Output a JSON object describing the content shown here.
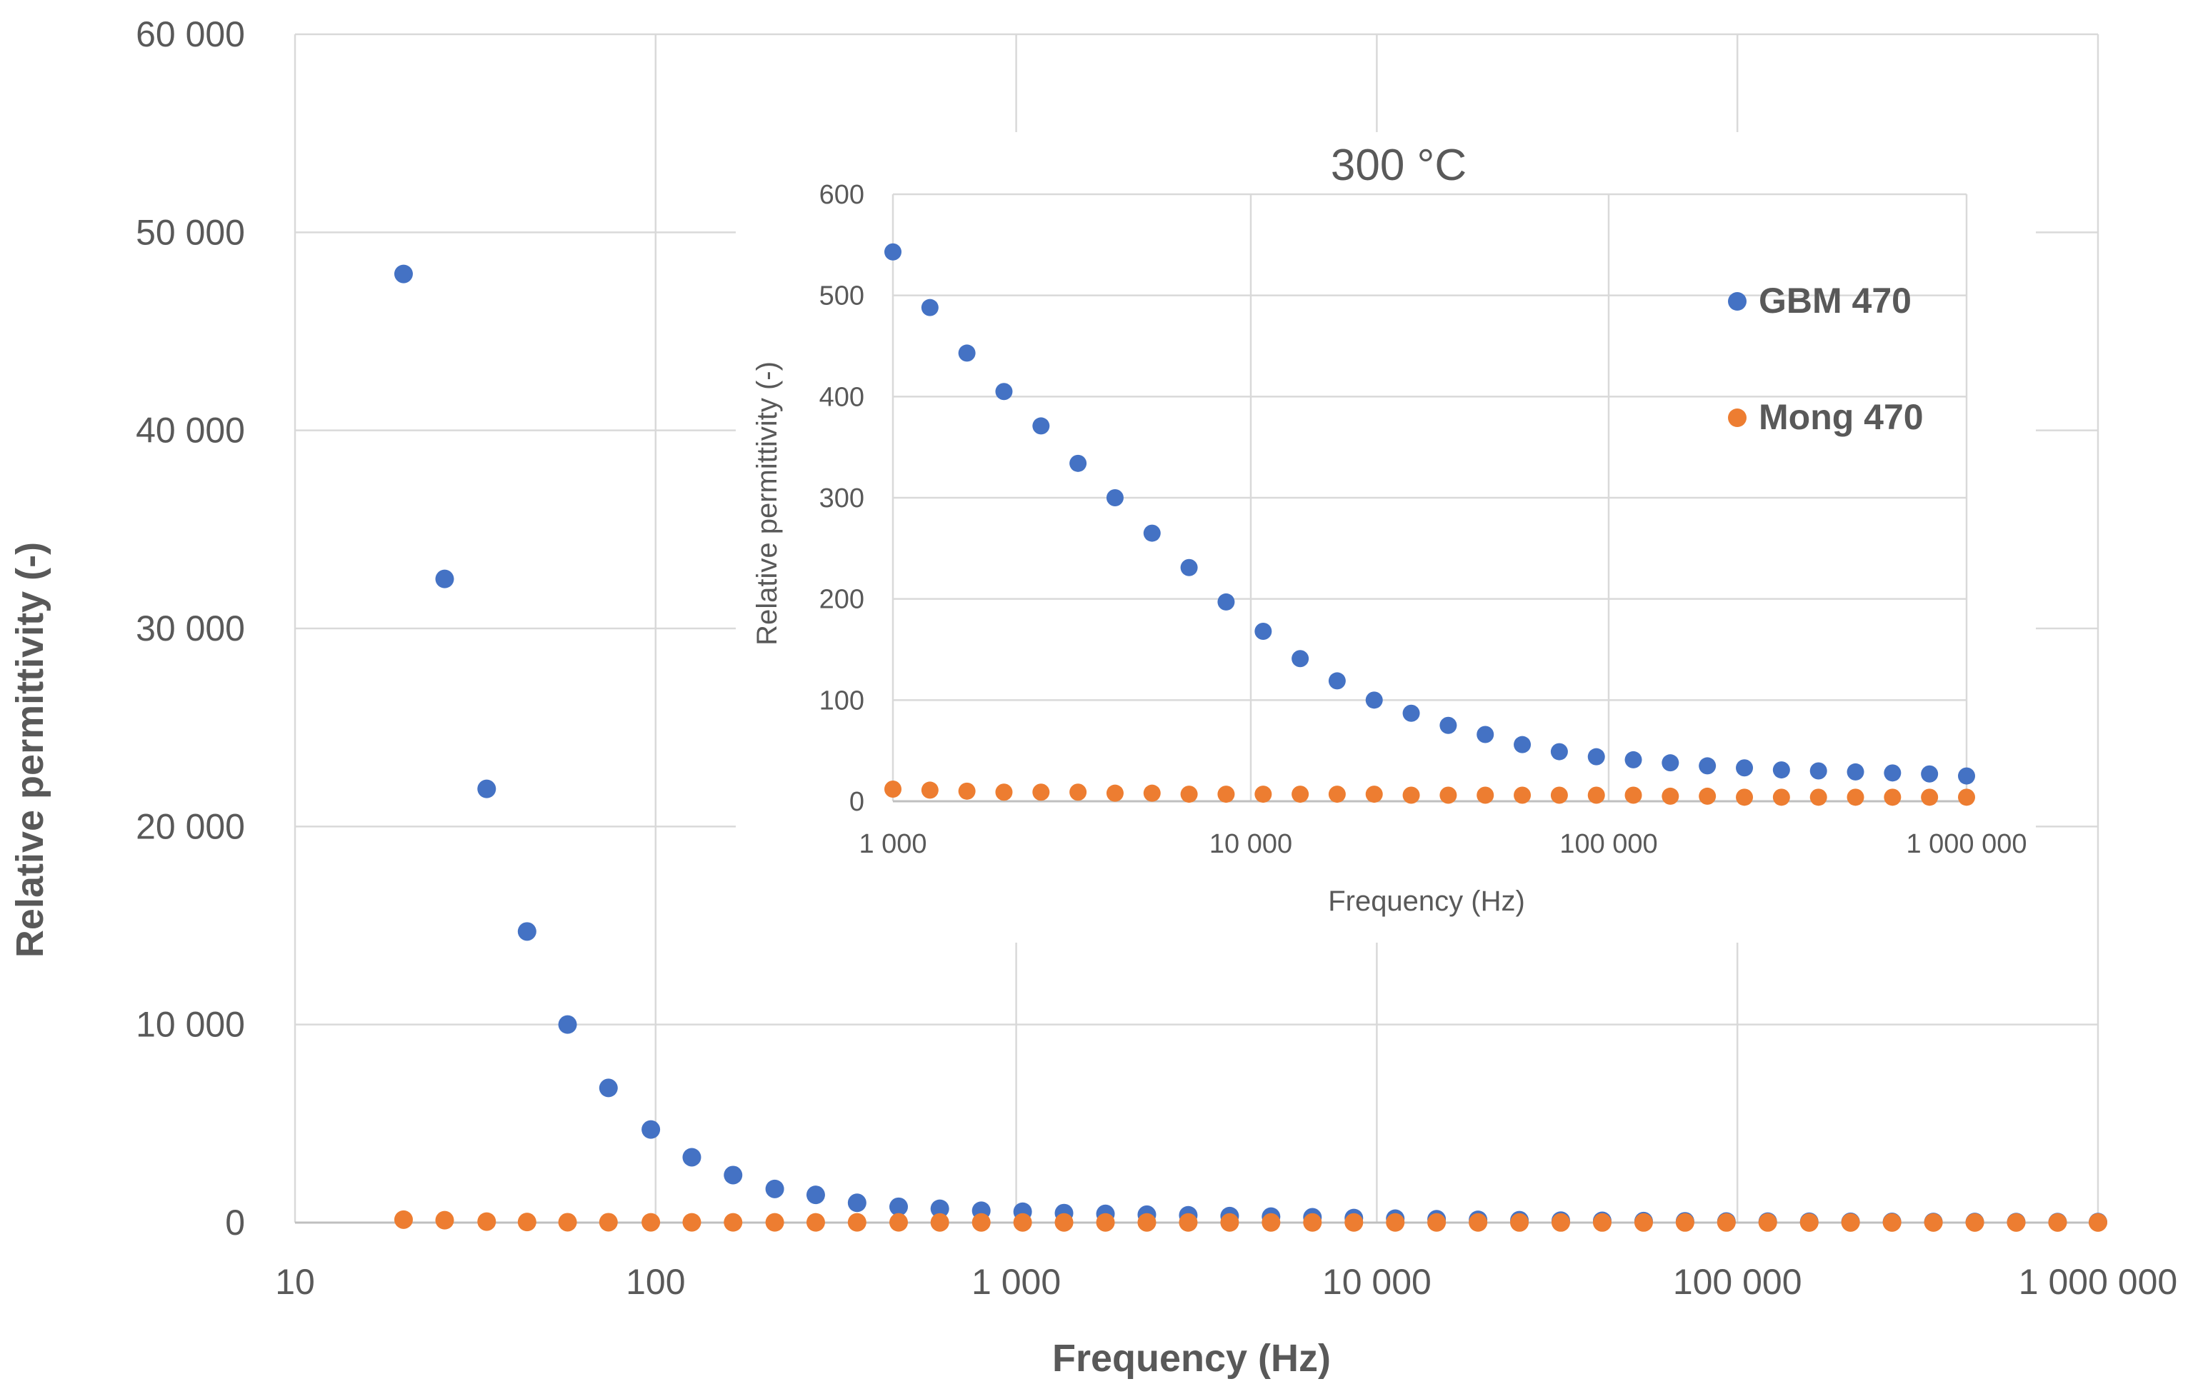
{
  "colors": {
    "series_gbm": "#4472c4",
    "series_mong": "#ed7d31",
    "grid": "#d9d9d9",
    "text": "#595959"
  },
  "chart_data": [
    {
      "id": "main",
      "type": "scatter",
      "title": "",
      "xlabel": "Frequency (Hz)",
      "ylabel": "Relative permittivity (-)",
      "xscale": "log",
      "xlim": [
        10,
        1000000
      ],
      "ylim": [
        0,
        60000
      ],
      "xticks": [
        10,
        100,
        1000,
        10000,
        100000,
        1000000
      ],
      "xtick_labels": [
        "10",
        "100",
        "1 000",
        "10 000",
        "100 000",
        "1 000 000"
      ],
      "yticks": [
        0,
        10000,
        20000,
        30000,
        40000,
        50000,
        60000
      ],
      "ytick_labels": [
        "0",
        "10 000",
        "20 000",
        "30 000",
        "40 000",
        "50 000",
        "60 000"
      ],
      "grid": true,
      "x": [
        20,
        26,
        34,
        44,
        57,
        74,
        97,
        126,
        164,
        214,
        278,
        362,
        472,
        614,
        800,
        1042,
        1357,
        1768,
        2303,
        3000,
        3908,
        5090,
        6630,
        8637,
        11250,
        14650,
        19090,
        24860,
        32380,
        42180,
        54950,
        71570,
        93230,
        121400,
        158200,
        206000,
        268400,
        349600,
        455400,
        593200,
        772700,
        1000000
      ],
      "series": [
        {
          "name": "GBM 470",
          "color": "#4472c4",
          "values": [
            47900,
            32500,
            21900,
            14700,
            10000,
            6800,
            4700,
            3300,
            2400,
            1700,
            1400,
            1000,
            800,
            700,
            600,
            550,
            480,
            440,
            400,
            370,
            330,
            300,
            270,
            230,
            200,
            170,
            140,
            120,
            100,
            90,
            75,
            65,
            55,
            50,
            45,
            40,
            35,
            32,
            30,
            28,
            26,
            25
          ]
        },
        {
          "name": "Mong 470",
          "color": "#ed7d31",
          "values": [
            150,
            120,
            50,
            30,
            20,
            20,
            15,
            15,
            12,
            12,
            12,
            12,
            12,
            10,
            10,
            10,
            10,
            10,
            10,
            8,
            8,
            8,
            8,
            8,
            8,
            8,
            8,
            7,
            7,
            7,
            7,
            7,
            7,
            7,
            6,
            6,
            6,
            6,
            6,
            6,
            6,
            6
          ]
        }
      ]
    },
    {
      "id": "inset",
      "type": "scatter",
      "title": "300 °C",
      "xlabel": "Frequency (Hz)",
      "ylabel": "Relative permittivity (-)",
      "xscale": "log",
      "xlim": [
        1000,
        1000000
      ],
      "ylim": [
        0,
        600
      ],
      "xticks": [
        1000,
        10000,
        100000,
        1000000
      ],
      "xtick_labels": [
        "1 000",
        "10 000",
        "100 000",
        "1 000 000"
      ],
      "yticks": [
        0,
        100,
        200,
        300,
        400,
        500,
        600
      ],
      "ytick_labels": [
        "0",
        "100",
        "200",
        "300",
        "400",
        "500",
        "600"
      ],
      "grid": true,
      "legend": {
        "position": "top-right",
        "entries": [
          "GBM 470",
          "Mong 470"
        ]
      },
      "x": [
        1000,
        1269,
        1610,
        2043,
        2593,
        3290,
        4175,
        5298,
        6723,
        8531,
        10830,
        13740,
        17430,
        22120,
        28070,
        35620,
        45200,
        57360,
        72790,
        92370,
        117200,
        148700,
        188700,
        239500,
        303900,
        385700,
        489400,
        621000,
        788000,
        1000000
      ],
      "series": [
        {
          "name": "GBM 470",
          "color": "#4472c4",
          "values": [
            543,
            488,
            443,
            405,
            371,
            334,
            300,
            265,
            231,
            197,
            168,
            141,
            119,
            100,
            87,
            75,
            66,
            56,
            49,
            44,
            41,
            38,
            35,
            33,
            31,
            30,
            29,
            28,
            27,
            25
          ]
        },
        {
          "name": "Mong 470",
          "color": "#ed7d31",
          "values": [
            12,
            11,
            10,
            9,
            9,
            9,
            8,
            8,
            7,
            7,
            7,
            7,
            7,
            7,
            6,
            6,
            6,
            6,
            6,
            6,
            6,
            5,
            5,
            4,
            4,
            4,
            4,
            4,
            4,
            4
          ]
        }
      ]
    }
  ]
}
